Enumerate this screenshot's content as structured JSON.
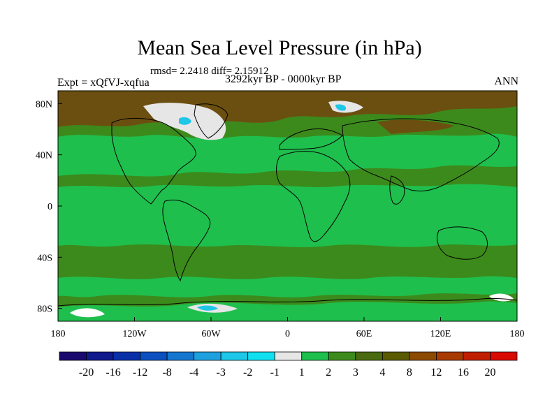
{
  "title": "Mean Sea Level Pressure (in hPa)",
  "stats": "rmsd= 2.2418 diff= 2.15912",
  "experiment": "Expt = xQfVJ-xqfua",
  "period": "3292kyr BP - 0000kyr BP",
  "season": "ANN",
  "x_ticks": [
    {
      "label": "180",
      "lon": -180
    },
    {
      "label": "120W",
      "lon": -120
    },
    {
      "label": "60W",
      "lon": -60
    },
    {
      "label": "0",
      "lon": 0
    },
    {
      "label": "60E",
      "lon": 60
    },
    {
      "label": "120E",
      "lon": 120
    },
    {
      "label": "180",
      "lon": 180
    }
  ],
  "y_ticks": [
    {
      "label": "80N",
      "lat": 80
    },
    {
      "label": "40N",
      "lat": 40
    },
    {
      "label": "0",
      "lat": 0
    },
    {
      "label": "40S",
      "lat": -40
    },
    {
      "label": "80S",
      "lat": -80
    }
  ],
  "colorbar": {
    "colors": [
      "#1a0a6e",
      "#101a8c",
      "#0a30a8",
      "#0c50bf",
      "#1476cf",
      "#1ea0de",
      "#1ec6e8",
      "#10e0f0",
      "#e6e6e6",
      "#1fbf4d",
      "#3c8a1c",
      "#4a6a10",
      "#5a5a00",
      "#8c4a00",
      "#a63a00",
      "#c01e00",
      "#d90a00"
    ],
    "labels": [
      "-20",
      "-16",
      "-12",
      "-8",
      "-4",
      "-3",
      "-2",
      "-1",
      "1",
      "2",
      "3",
      "4",
      "8",
      "12",
      "16",
      "20"
    ]
  },
  "legend_colors": {
    "bright_green": "#1fbf4d",
    "olive_green": "#3c8a1c",
    "brown": "#6b4f10",
    "light_gray": "#e6e6e6",
    "cyan": "#1ec6e8",
    "white": "#ffffff"
  }
}
